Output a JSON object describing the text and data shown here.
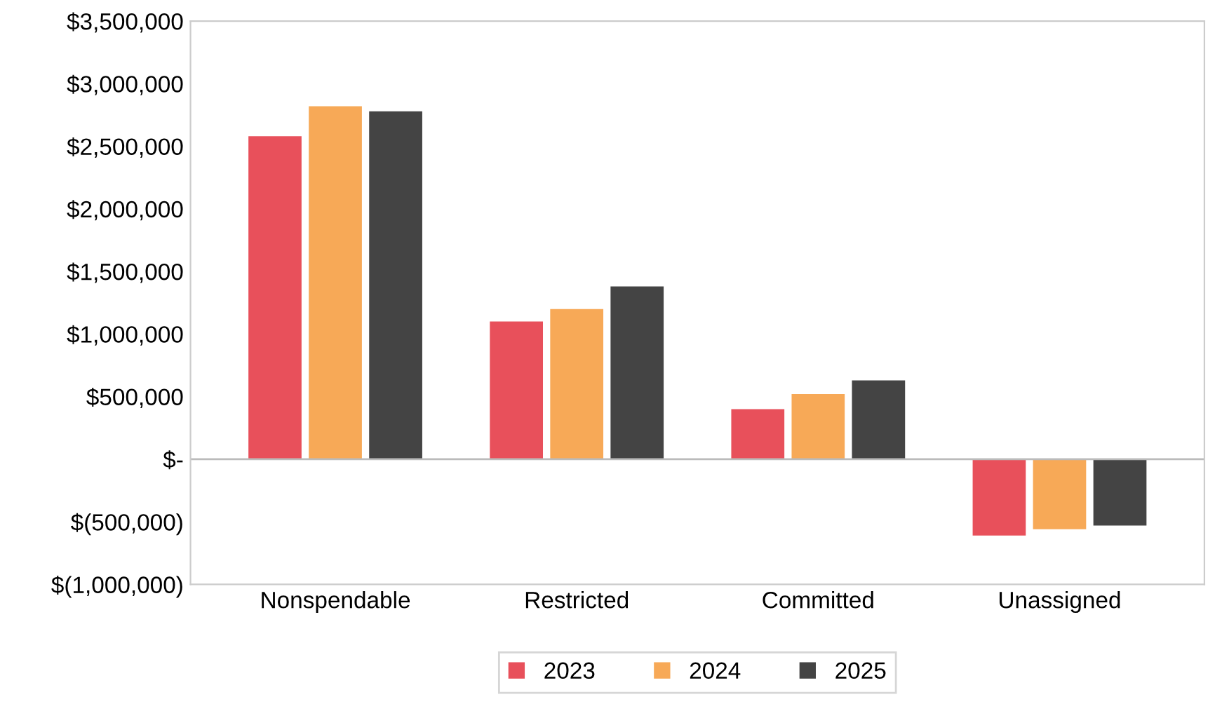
{
  "chart_data": {
    "type": "bar",
    "categories": [
      "Nonspendable",
      "Restricted",
      "Committed",
      "Unassigned"
    ],
    "series": [
      {
        "name": "2023",
        "color": "#e8505b",
        "values": [
          2580000,
          1100000,
          400000,
          -610000
        ]
      },
      {
        "name": "2024",
        "color": "#f7a957",
        "values": [
          2820000,
          1200000,
          520000,
          -560000
        ]
      },
      {
        "name": "2025",
        "color": "#444444",
        "values": [
          2780000,
          1380000,
          630000,
          -530000
        ]
      }
    ],
    "ref_lines": [
      {
        "axis": "y",
        "value": 0,
        "color": "#bbbbbb"
      }
    ],
    "ylim": [
      -1000000,
      3500000
    ],
    "yticks": [
      {
        "value": -1000000,
        "label": "$(1,000,000)"
      },
      {
        "value": -500000,
        "label": "$(500,000)"
      },
      {
        "value": 0,
        "label": "$-"
      },
      {
        "value": 500000,
        "label": "$500,000"
      },
      {
        "value": 1000000,
        "label": "$1,000,000"
      },
      {
        "value": 1500000,
        "label": "$1,500,000"
      },
      {
        "value": 2000000,
        "label": "$2,000,000"
      },
      {
        "value": 2500000,
        "label": "$2,500,000"
      },
      {
        "value": 3000000,
        "label": "$3,000,000"
      },
      {
        "value": 3500000,
        "label": "$3,500,000"
      }
    ],
    "grid": false,
    "legend": "bottom"
  }
}
